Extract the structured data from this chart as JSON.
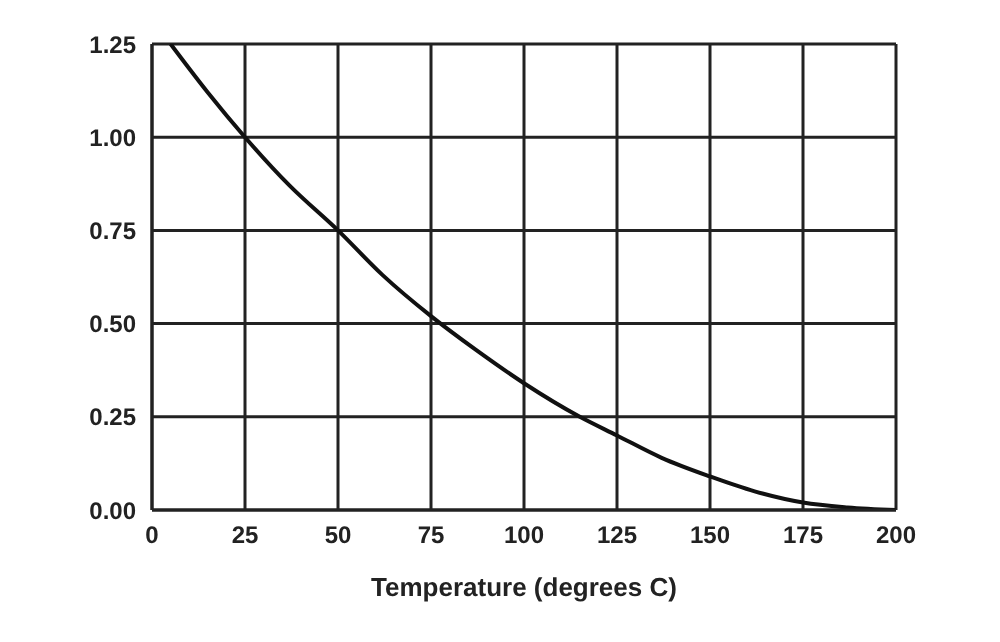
{
  "chart_data": {
    "type": "line",
    "xlabel": "Temperature (degrees C)",
    "x": [
      5,
      15,
      25,
      37,
      50,
      62,
      75,
      87,
      100,
      115,
      125,
      137,
      150,
      162,
      175,
      187,
      200
    ],
    "series": [
      {
        "color": "#111111",
        "values": [
          1.25,
          1.12,
          1.0,
          0.87,
          0.75,
          0.63,
          0.52,
          0.43,
          0.34,
          0.25,
          0.2,
          0.14,
          0.09,
          0.05,
          0.02,
          0.007,
          0.0
        ]
      }
    ],
    "xlim": [
      0,
      200
    ],
    "xticks": [
      0,
      25,
      50,
      75,
      100,
      125,
      150,
      175,
      200
    ],
    "ylim": [
      0,
      1.25
    ],
    "yticks": [
      {
        "value": 0,
        "label": "0.00"
      },
      {
        "value": 0.25,
        "label": "0.25"
      },
      {
        "value": 0.5,
        "label": "0.50"
      },
      {
        "value": 0.75,
        "label": "0.75"
      },
      {
        "value": 1,
        "label": "1.00"
      },
      {
        "value": 1.25,
        "label": "1.25"
      }
    ],
    "grid": true,
    "legend": false,
    "marker": "none",
    "line_style": "solid"
  }
}
